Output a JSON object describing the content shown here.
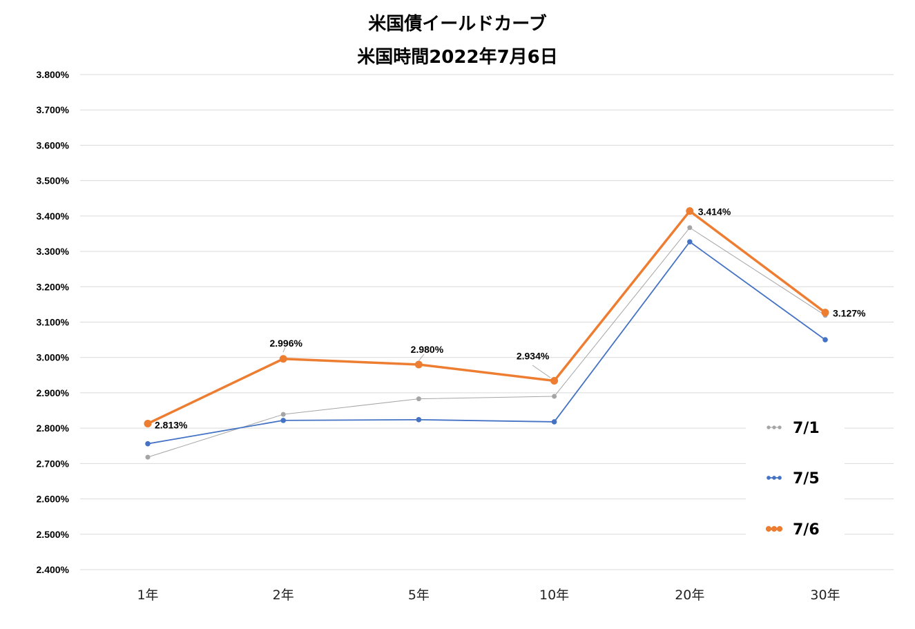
{
  "chart_data": {
    "type": "line",
    "title": "米国債イールドカーブ",
    "subtitle": "米国時間2022年7月6日",
    "categories": [
      "1年",
      "2年",
      "5年",
      "10年",
      "20年",
      "30年"
    ],
    "ylim": [
      2.4,
      3.8
    ],
    "yticks": [
      {
        "value": 3.8,
        "label": "3.800%"
      },
      {
        "value": 3.7,
        "label": "3.700%"
      },
      {
        "value": 3.6,
        "label": "3.600%"
      },
      {
        "value": 3.5,
        "label": "3.500%"
      },
      {
        "value": 3.4,
        "label": "3.400%"
      },
      {
        "value": 3.3,
        "label": "3.300%"
      },
      {
        "value": 3.2,
        "label": "3.200%"
      },
      {
        "value": 3.1,
        "label": "3.100%"
      },
      {
        "value": 3.0,
        "label": "3.000%"
      },
      {
        "value": 2.9,
        "label": "2.900%"
      },
      {
        "value": 2.8,
        "label": "2.800%"
      },
      {
        "value": 2.7,
        "label": "2.700%"
      },
      {
        "value": 2.6,
        "label": "2.600%"
      },
      {
        "value": 2.5,
        "label": "2.500%"
      },
      {
        "value": 2.4,
        "label": "2.400%"
      }
    ],
    "grid": true,
    "legend_position": "right",
    "series": [
      {
        "name": "7/1",
        "color": "#a5a5a5",
        "values": [
          2.718,
          2.839,
          2.883,
          2.89,
          3.367,
          3.119
        ]
      },
      {
        "name": "7/5",
        "color": "#4472c4",
        "values": [
          2.756,
          2.822,
          2.824,
          2.818,
          3.327,
          3.05
        ]
      },
      {
        "name": "7/6",
        "color": "#ed7d31",
        "values": [
          2.813,
          2.996,
          2.98,
          2.934,
          3.414,
          3.127
        ],
        "data_labels": [
          "2.813%",
          "2.996%",
          "2.980%",
          "2.934%",
          "3.414%",
          "3.127%"
        ]
      }
    ]
  }
}
